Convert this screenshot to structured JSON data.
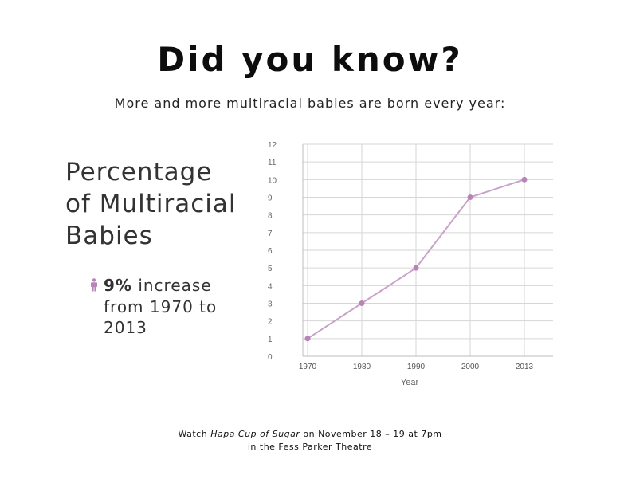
{
  "headline": "Did you know?",
  "subhead": "More and more multiracial babies are born every year:",
  "chart_title_lines": [
    "Percentage",
    "of Multiracial",
    "Babies"
  ],
  "callout": {
    "icon": "person-icon",
    "percent": "9%",
    "text_first": " increase",
    "text_rest": "from 1970 to 2013"
  },
  "footer": {
    "line1_prefix": "Watch ",
    "line1_title": "Hapa Cup of Sugar",
    "line1_suffix": " on November 18 – 19 at 7pm",
    "line2": "in the Fess Parker Theatre"
  },
  "colors": {
    "line": "#c9a2c9",
    "point": "#b784b7",
    "grid": "#d6d6d6",
    "icon": "#b784b7"
  },
  "chart_data": {
    "type": "line",
    "categories": [
      "1970",
      "1980",
      "1990",
      "2000",
      "2013"
    ],
    "series": [
      {
        "values": [
          1,
          3,
          5,
          9,
          10
        ]
      }
    ],
    "xlabel": "Year",
    "ylabel": "",
    "ylim": [
      0,
      12
    ],
    "yticks": [
      0,
      1,
      2,
      3,
      4,
      5,
      6,
      7,
      8,
      9,
      10,
      11,
      12
    ],
    "grid": true,
    "legend": "none"
  }
}
